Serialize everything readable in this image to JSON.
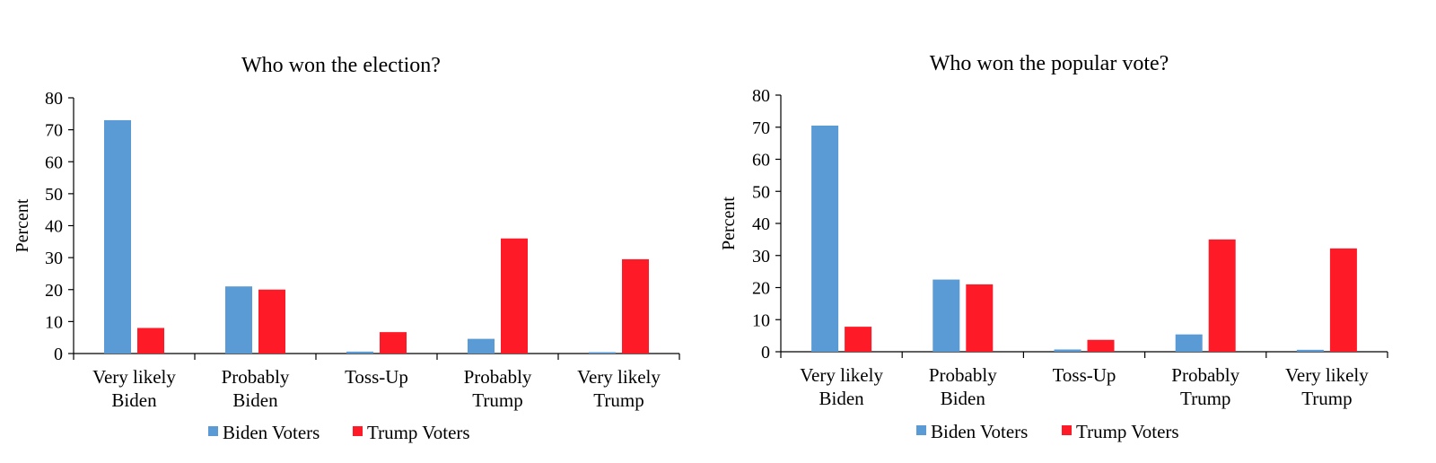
{
  "chart_data": [
    {
      "type": "bar",
      "title": "Who won the election?",
      "ylabel": "Percent",
      "ylim": [
        0,
        80
      ],
      "yticks": [
        0,
        10,
        20,
        30,
        40,
        50,
        60,
        70,
        80
      ],
      "categories": [
        [
          "Very likely",
          "Biden"
        ],
        [
          "Probably",
          "Biden"
        ],
        [
          "Toss-Up"
        ],
        [
          "Probably",
          "Trump"
        ],
        [
          "Very likely",
          "Trump"
        ]
      ],
      "series": [
        {
          "name": "Biden Voters",
          "color": "#5B9BD5",
          "values": [
            73,
            21,
            0.6,
            4.6,
            0.4
          ]
        },
        {
          "name": "Trump Voters",
          "color": "#FF1A27",
          "values": [
            8,
            20,
            6.7,
            36,
            29.5
          ]
        }
      ],
      "legend": "bottom"
    },
    {
      "type": "bar",
      "title": "Who won the popular vote?",
      "ylabel": "Percent",
      "ylim": [
        0,
        80
      ],
      "yticks": [
        0,
        10,
        20,
        30,
        40,
        50,
        60,
        70,
        80
      ],
      "categories": [
        [
          "Very likely",
          "Biden"
        ],
        [
          "Probably",
          "Biden"
        ],
        [
          "Toss-Up"
        ],
        [
          "Probably",
          "Trump"
        ],
        [
          "Very likely",
          "Trump"
        ]
      ],
      "series": [
        {
          "name": "Biden Voters",
          "color": "#5B9BD5",
          "values": [
            70.5,
            22.5,
            0.7,
            5.4,
            0.6
          ]
        },
        {
          "name": "Trump Voters",
          "color": "#FF1A27",
          "values": [
            7.8,
            21,
            3.7,
            35,
            32.2
          ]
        }
      ],
      "legend": "bottom"
    }
  ]
}
